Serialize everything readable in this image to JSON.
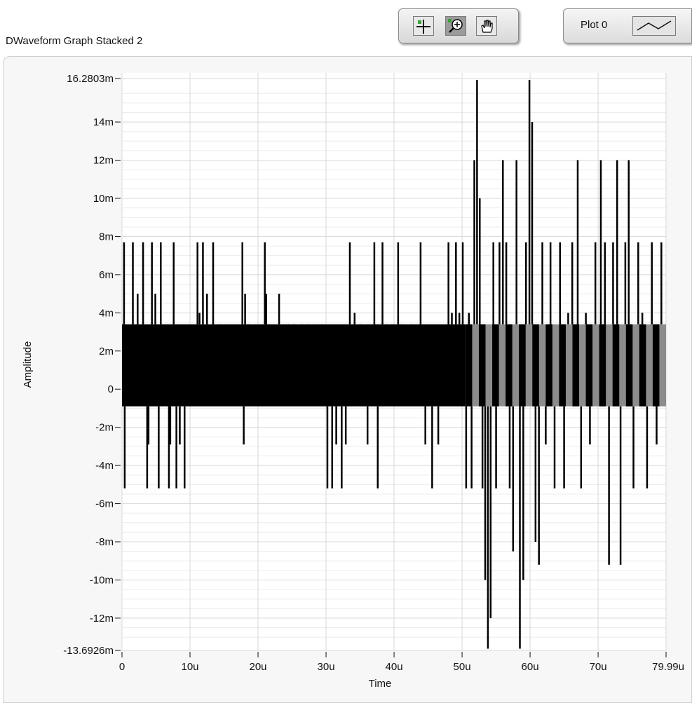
{
  "graph": {
    "label": "DWaveform Graph Stacked 2"
  },
  "toolbar": {
    "tools": [
      {
        "name": "cursor-tool",
        "icon": "crosshair-icon"
      },
      {
        "name": "zoom-tool",
        "icon": "zoom-icon",
        "active": true
      },
      {
        "name": "pan-tool",
        "icon": "hand-icon"
      }
    ]
  },
  "legend": {
    "plot_label": "Plot 0",
    "swatch_icon": "line-plot-icon"
  },
  "colors": {
    "plot_background": "#ffffff",
    "grid_major": "#d8d8d8",
    "grid_minor": "#ececec",
    "trace_primary": "#000000",
    "trace_secondary": "#8c8c8c"
  },
  "chart_data": {
    "type": "line",
    "title": "",
    "xlabel": "Time",
    "ylabel": "Amplitude",
    "xlim": [
      0,
      79.99
    ],
    "ylim": [
      -13.6926,
      16.2803
    ],
    "x_unit": "u",
    "y_unit": "m",
    "x_ticks": [
      {
        "value": 0,
        "label": "0"
      },
      {
        "value": 10,
        "label": "10u"
      },
      {
        "value": 20,
        "label": "20u"
      },
      {
        "value": 30,
        "label": "30u"
      },
      {
        "value": 40,
        "label": "40u"
      },
      {
        "value": 50,
        "label": "50u"
      },
      {
        "value": 60,
        "label": "60u"
      },
      {
        "value": 70,
        "label": "70u"
      },
      {
        "value": 79.99,
        "label": "79.99u"
      }
    ],
    "y_ticks": [
      {
        "value": 16.2803,
        "label": "16.2803m"
      },
      {
        "value": 14,
        "label": "14m"
      },
      {
        "value": 12,
        "label": "12m"
      },
      {
        "value": 10,
        "label": "10m"
      },
      {
        "value": 8,
        "label": "8m"
      },
      {
        "value": 6,
        "label": "6m"
      },
      {
        "value": 4,
        "label": "4m"
      },
      {
        "value": 2,
        "label": "2m"
      },
      {
        "value": 0,
        "label": "0"
      },
      {
        "value": -2,
        "label": "-2m"
      },
      {
        "value": -4,
        "label": "-4m"
      },
      {
        "value": -6,
        "label": "-6m"
      },
      {
        "value": -8,
        "label": "-8m"
      },
      {
        "value": -10,
        "label": "-10m"
      },
      {
        "value": -12,
        "label": "-12m"
      },
      {
        "value": -13.6926,
        "label": "-13.6926m"
      }
    ],
    "grid": true,
    "series": [
      {
        "segments": [
          {
            "x": [
              0,
              50.5
            ],
            "band": [
              -0.9,
              3.4
            ]
          },
          {
            "x": [
              50.5,
              80
            ],
            "band": [
              -0.9,
              3.4
            ],
            "style": "alternating"
          }
        ],
        "spikes": [
          {
            "x": 0.3,
            "y": 7.7
          },
          {
            "x": 0.4,
            "y": -5.2
          },
          {
            "x": 1.6,
            "y": 7.7
          },
          {
            "x": 2.3,
            "y": 5.0
          },
          {
            "x": 3.1,
            "y": 7.7
          },
          {
            "x": 3.7,
            "y": -5.2
          },
          {
            "x": 3.9,
            "y": -2.9
          },
          {
            "x": 4.4,
            "y": 7.7
          },
          {
            "x": 4.9,
            "y": 5.0
          },
          {
            "x": 5.4,
            "y": -5.2
          },
          {
            "x": 5.7,
            "y": 7.7
          },
          {
            "x": 6.9,
            "y": -5.2
          },
          {
            "x": 7.1,
            "y": -2.9
          },
          {
            "x": 7.6,
            "y": 7.7
          },
          {
            "x": 8.0,
            "y": -5.2
          },
          {
            "x": 8.5,
            "y": -2.9
          },
          {
            "x": 9.2,
            "y": -5.2
          },
          {
            "x": 11.1,
            "y": 7.7
          },
          {
            "x": 11.4,
            "y": 4.0
          },
          {
            "x": 11.9,
            "y": 7.7
          },
          {
            "x": 12.5,
            "y": 5.0
          },
          {
            "x": 13.4,
            "y": 7.7
          },
          {
            "x": 14.5,
            "y": 1.5
          },
          {
            "x": 17.7,
            "y": 7.7
          },
          {
            "x": 17.9,
            "y": -2.9
          },
          {
            "x": 18.1,
            "y": 5.0
          },
          {
            "x": 18.6,
            "y": 1.5
          },
          {
            "x": 21.0,
            "y": 7.7
          },
          {
            "x": 21.2,
            "y": 5.0
          },
          {
            "x": 21.7,
            "y": 1.5
          },
          {
            "x": 23.1,
            "y": 5.0
          },
          {
            "x": 23.7,
            "y": 1.5
          },
          {
            "x": 24.5,
            "y": 1.5
          },
          {
            "x": 25.3,
            "y": 1.5
          },
          {
            "x": 26.4,
            "y": 1.5
          },
          {
            "x": 27.4,
            "y": 1.5
          },
          {
            "x": 29.4,
            "y": 1.5
          },
          {
            "x": 30.2,
            "y": -5.2
          },
          {
            "x": 30.9,
            "y": -5.2
          },
          {
            "x": 31.5,
            "y": -2.9
          },
          {
            "x": 32.3,
            "y": -5.2
          },
          {
            "x": 32.9,
            "y": -2.9
          },
          {
            "x": 33.5,
            "y": 7.7
          },
          {
            "x": 34.2,
            "y": 4.0
          },
          {
            "x": 35.1,
            "y": 1.5
          },
          {
            "x": 36.1,
            "y": -2.9
          },
          {
            "x": 37.1,
            "y": 7.7
          },
          {
            "x": 37.6,
            "y": -5.2
          },
          {
            "x": 38.3,
            "y": 7.7
          },
          {
            "x": 38.9,
            "y": 1.5
          },
          {
            "x": 39.7,
            "y": 1.5
          },
          {
            "x": 40.6,
            "y": 7.7
          },
          {
            "x": 41.1,
            "y": 1.5
          },
          {
            "x": 42.5,
            "y": 1.5
          },
          {
            "x": 43.9,
            "y": 7.7
          },
          {
            "x": 44.6,
            "y": -2.9
          },
          {
            "x": 45.6,
            "y": -5.2
          },
          {
            "x": 46.5,
            "y": -2.9
          },
          {
            "x": 48.0,
            "y": 7.7
          },
          {
            "x": 48.5,
            "y": 4.0
          },
          {
            "x": 49.1,
            "y": 7.7
          },
          {
            "x": 49.6,
            "y": 4.0
          },
          {
            "x": 50.1,
            "y": 7.7
          },
          {
            "x": 50.6,
            "y": -5.2
          },
          {
            "x": 51.0,
            "y": 4.0
          },
          {
            "x": 51.4,
            "y": -5.2
          },
          {
            "x": 51.8,
            "y": 12.0
          },
          {
            "x": 52.2,
            "y": 16.2
          },
          {
            "x": 52.6,
            "y": 10.0
          },
          {
            "x": 53.0,
            "y": -5.2
          },
          {
            "x": 53.4,
            "y": -10.0
          },
          {
            "x": 53.8,
            "y": -13.6
          },
          {
            "x": 54.2,
            "y": -12.0
          },
          {
            "x": 54.6,
            "y": 7.7
          },
          {
            "x": 55.0,
            "y": -5.2
          },
          {
            "x": 55.5,
            "y": 7.7
          },
          {
            "x": 56.0,
            "y": 12.0
          },
          {
            "x": 56.5,
            "y": 7.7
          },
          {
            "x": 57.0,
            "y": -5.2
          },
          {
            "x": 57.5,
            "y": -8.5
          },
          {
            "x": 58.0,
            "y": 12.0
          },
          {
            "x": 58.5,
            "y": -13.6
          },
          {
            "x": 59.0,
            "y": -10.0
          },
          {
            "x": 59.4,
            "y": 7.7
          },
          {
            "x": 59.9,
            "y": 16.2
          },
          {
            "x": 60.3,
            "y": 14.0
          },
          {
            "x": 60.8,
            "y": -8.0
          },
          {
            "x": 61.3,
            "y": -9.2
          },
          {
            "x": 61.8,
            "y": 7.7
          },
          {
            "x": 62.3,
            "y": -2.9
          },
          {
            "x": 63.0,
            "y": 7.7
          },
          {
            "x": 63.6,
            "y": -5.2
          },
          {
            "x": 64.4,
            "y": 7.7
          },
          {
            "x": 65.0,
            "y": -5.2
          },
          {
            "x": 65.6,
            "y": 4.0
          },
          {
            "x": 66.2,
            "y": 7.7
          },
          {
            "x": 67.0,
            "y": 12.0
          },
          {
            "x": 67.5,
            "y": -5.2
          },
          {
            "x": 68.2,
            "y": 4.0
          },
          {
            "x": 68.8,
            "y": -2.9
          },
          {
            "x": 69.6,
            "y": 7.7
          },
          {
            "x": 70.4,
            "y": 12.0
          },
          {
            "x": 71.0,
            "y": 7.7
          },
          {
            "x": 71.6,
            "y": -9.2
          },
          {
            "x": 72.2,
            "y": 7.7
          },
          {
            "x": 72.8,
            "y": 12.0
          },
          {
            "x": 73.3,
            "y": -9.2
          },
          {
            "x": 74.0,
            "y": 7.7
          },
          {
            "x": 74.5,
            "y": 12.0
          },
          {
            "x": 75.2,
            "y": -5.2
          },
          {
            "x": 75.9,
            "y": 7.7
          },
          {
            "x": 76.5,
            "y": 4.0
          },
          {
            "x": 77.2,
            "y": -5.2
          },
          {
            "x": 77.9,
            "y": 7.7
          },
          {
            "x": 78.6,
            "y": -2.9
          },
          {
            "x": 79.3,
            "y": 7.7
          }
        ]
      }
    ]
  }
}
